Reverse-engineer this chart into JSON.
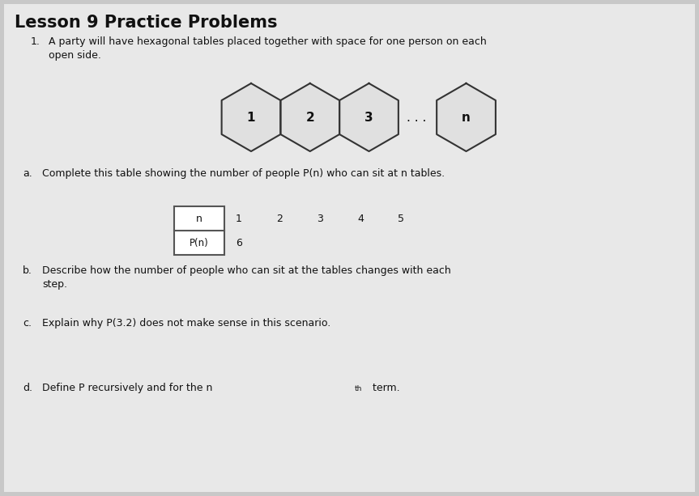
{
  "title": "Lesson 9 Practice Problems",
  "problem_number": "1.",
  "problem_text": "A party will have hexagonal tables placed together with space for one person on each\nopen side.",
  "part_a_label": "a.",
  "part_a_text": "Complete this table showing the number of people P(n) who can sit at n tables.",
  "table_row1_label": "n",
  "table_row2_label": "P(n)",
  "table_values_n": [
    "1",
    "2",
    "3",
    "4",
    "5"
  ],
  "table_values_P": [
    "6",
    "",
    "",
    "",
    ""
  ],
  "part_b_label": "b.",
  "part_b_text": "Describe how the number of people who can sit at the tables changes with each\nstep.",
  "part_c_label": "c.",
  "part_c_text": "Explain why P(3.2) does not make sense in this scenario.",
  "part_d_label": "d.",
  "part_d_text": "Define P recursively and for the n",
  "part_d_superscript": "th",
  "part_d_text2": " term.",
  "hex_labels": [
    "1",
    "2",
    "3",
    "n"
  ],
  "bg_color": "#c8c8c8",
  "page_color": "#e8e8e8",
  "text_color": "#111111",
  "box_color": "#ffffff",
  "box_edge_color": "#555555",
  "hex_fill": "#e0e0e0",
  "hex_edge": "#333333"
}
